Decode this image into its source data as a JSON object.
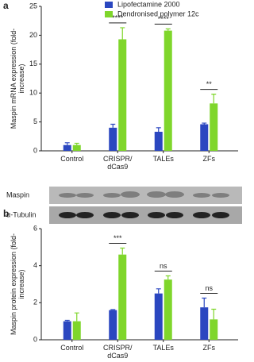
{
  "chart_data": [
    {
      "type": "bar",
      "panel_label": "a",
      "y_label": "Maspin mRNA expression (fold-increase)",
      "categories": [
        "Control",
        "CRISPR/ dCas9",
        "TALEs",
        "ZFs"
      ],
      "series": [
        {
          "name": "Lipofectamine 2000",
          "color": "#2b47c0",
          "values": [
            1.0,
            4.0,
            3.3,
            4.6
          ],
          "errors": [
            0.4,
            0.6,
            0.7,
            0.2
          ]
        },
        {
          "name": "Dendronised polymer 12c",
          "color": "#7fd62b",
          "values": [
            1.0,
            19.3,
            20.8,
            8.2
          ],
          "errors": [
            0.3,
            2.0,
            0.3,
            1.6
          ]
        }
      ],
      "significance": [
        null,
        "****",
        "****",
        "**"
      ],
      "ylim": [
        0,
        25
      ],
      "yticks": [
        0,
        5,
        10,
        15,
        20,
        25
      ],
      "legend": "top-right"
    },
    {
      "type": "bar",
      "panel_label": "b",
      "y_label": "Maspin protein expression (fold-increase)",
      "blot_labels": [
        "Maspin",
        "α-Tubulin"
      ],
      "categories": [
        "Control",
        "CRISPR/ dCas9",
        "TALEs",
        "ZFs"
      ],
      "series": [
        {
          "name": "Lipofectamine 2000",
          "color": "#2b47c0",
          "values": [
            1.0,
            1.6,
            2.5,
            1.75
          ],
          "errors": [
            0.05,
            0.03,
            0.25,
            0.5
          ]
        },
        {
          "name": "Dendronised polymer 12c",
          "color": "#7fd62b",
          "values": [
            1.0,
            4.6,
            3.25,
            1.1
          ],
          "errors": [
            0.45,
            0.35,
            0.2,
            0.55
          ]
        }
      ],
      "significance": [
        null,
        "***",
        "ns",
        "ns"
      ],
      "ylim": [
        0,
        6
      ],
      "yticks": [
        0,
        2,
        4,
        6
      ]
    }
  ]
}
